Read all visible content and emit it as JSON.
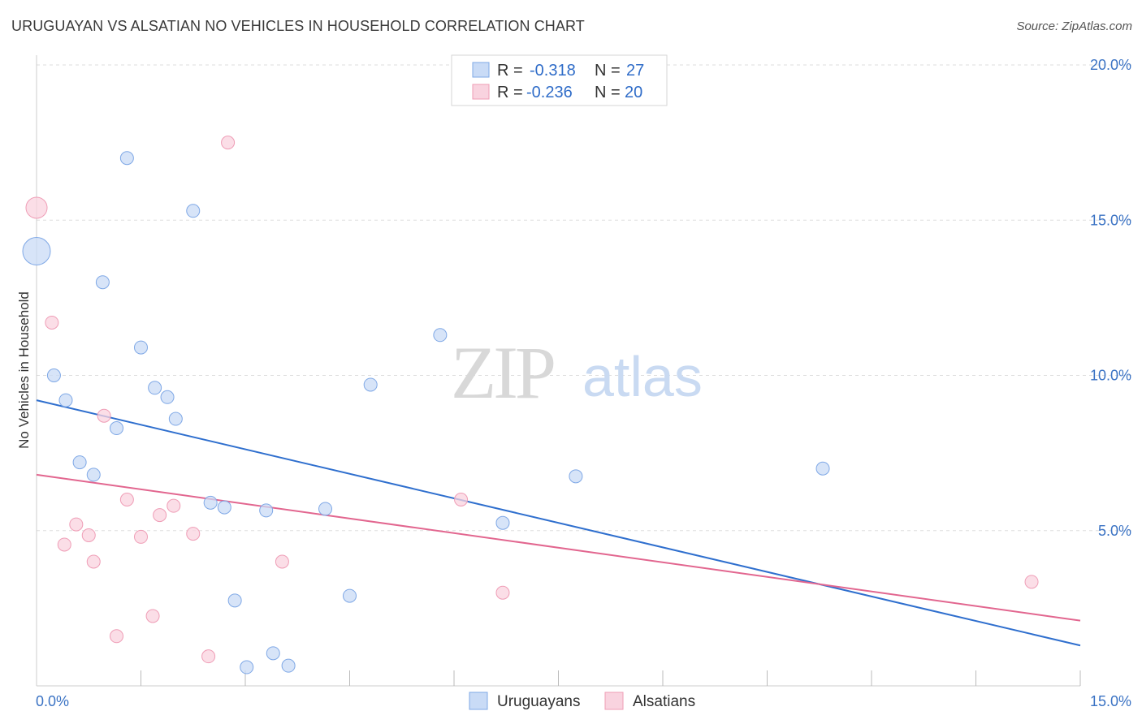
{
  "title": "URUGUAYAN VS ALSATIAN NO VEHICLES IN HOUSEHOLD CORRELATION CHART",
  "source": "Source: ZipAtlas.com",
  "watermark": {
    "zip": "ZIP",
    "atlas": "atlas"
  },
  "colors": {
    "blue": "#7fa8e6",
    "blue_fill": "#c9dbf6",
    "blue_line": "#2f6fce",
    "pink": "#ef9db6",
    "pink_fill": "#f9d3df",
    "pink_line": "#e2668f",
    "tick_label": "#3b73c4",
    "grid": "#dddddd"
  },
  "legend": {
    "rows": [
      {
        "r_label": "R =",
        "r_value": "-0.318",
        "n_label": "N =",
        "n_value": "27"
      },
      {
        "r_label": "R =",
        "r_value": "-0.236",
        "n_label": "N =",
        "n_value": "20"
      }
    ]
  },
  "bottom_legend": {
    "series1": "Uruguayans",
    "series2": "Alsatians"
  },
  "chart_data": {
    "type": "scatter",
    "title": "URUGUAYAN VS ALSATIAN NO VEHICLES IN HOUSEHOLD CORRELATION CHART",
    "xlabel": "",
    "ylabel": "No Vehicles in Household",
    "xlim": [
      0,
      15
    ],
    "ylim": [
      0,
      20
    ],
    "x_tick_labels": [
      "0.0%",
      "15.0%"
    ],
    "y_ticks": [
      5,
      10,
      15,
      20
    ],
    "y_tick_labels": [
      "5.0%",
      "10.0%",
      "15.0%",
      "20.0%"
    ],
    "series": [
      {
        "name": "Uruguayans",
        "R": -0.318,
        "N": 27,
        "trend": {
          "x": [
            0,
            15
          ],
          "y": [
            9.2,
            1.3
          ]
        },
        "points": [
          {
            "x": 0.0,
            "y": 14.0,
            "size": "large"
          },
          {
            "x": 1.3,
            "y": 17.0
          },
          {
            "x": 2.25,
            "y": 15.3
          },
          {
            "x": 0.95,
            "y": 13.0
          },
          {
            "x": 5.8,
            "y": 11.3
          },
          {
            "x": 1.5,
            "y": 10.9
          },
          {
            "x": 0.25,
            "y": 10.0
          },
          {
            "x": 4.8,
            "y": 9.7
          },
          {
            "x": 1.7,
            "y": 9.6
          },
          {
            "x": 1.88,
            "y": 9.3
          },
          {
            "x": 0.42,
            "y": 9.2
          },
          {
            "x": 2.0,
            "y": 8.6
          },
          {
            "x": 1.15,
            "y": 8.3
          },
          {
            "x": 0.62,
            "y": 7.2
          },
          {
            "x": 0.82,
            "y": 6.8
          },
          {
            "x": 11.3,
            "y": 7.0
          },
          {
            "x": 7.75,
            "y": 6.75
          },
          {
            "x": 2.5,
            "y": 5.9
          },
          {
            "x": 2.7,
            "y": 5.75
          },
          {
            "x": 3.3,
            "y": 5.65
          },
          {
            "x": 4.15,
            "y": 5.7
          },
          {
            "x": 6.7,
            "y": 5.25
          },
          {
            "x": 2.85,
            "y": 2.75
          },
          {
            "x": 4.5,
            "y": 2.9
          },
          {
            "x": 3.4,
            "y": 1.05
          },
          {
            "x": 3.02,
            "y": 0.6
          },
          {
            "x": 3.62,
            "y": 0.65
          }
        ]
      },
      {
        "name": "Alsatians",
        "R": -0.236,
        "N": 20,
        "trend": {
          "x": [
            0,
            15
          ],
          "y": [
            6.8,
            2.1
          ]
        },
        "points": [
          {
            "x": 0.0,
            "y": 15.4,
            "size": "medium"
          },
          {
            "x": 2.75,
            "y": 17.5
          },
          {
            "x": 0.22,
            "y": 11.7
          },
          {
            "x": 0.97,
            "y": 8.7
          },
          {
            "x": 1.3,
            "y": 6.0
          },
          {
            "x": 1.97,
            "y": 5.8
          },
          {
            "x": 1.77,
            "y": 5.5
          },
          {
            "x": 0.57,
            "y": 5.2
          },
          {
            "x": 0.75,
            "y": 4.85
          },
          {
            "x": 1.5,
            "y": 4.8
          },
          {
            "x": 2.25,
            "y": 4.9
          },
          {
            "x": 0.4,
            "y": 4.55
          },
          {
            "x": 0.82,
            "y": 4.0
          },
          {
            "x": 3.53,
            "y": 4.0
          },
          {
            "x": 6.1,
            "y": 6.0
          },
          {
            "x": 6.7,
            "y": 3.0
          },
          {
            "x": 14.3,
            "y": 3.35
          },
          {
            "x": 1.67,
            "y": 2.25
          },
          {
            "x": 1.15,
            "y": 1.6
          },
          {
            "x": 2.47,
            "y": 0.95
          }
        ]
      }
    ]
  }
}
